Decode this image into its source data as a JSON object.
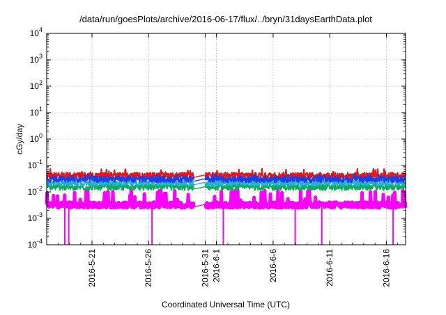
{
  "chart_data": {
    "type": "line",
    "title": "/data/run/goesPlots/archive/2016-06-17/flux/../bryn/31daysEarthData.plot",
    "xlabel": "Coordinated Universal Time (UTC)",
    "ylabel": "cGy/day",
    "yscale": "log",
    "ylim": [
      0.0001,
      10000
    ],
    "xlim": [
      "2016-05-17",
      "2016-06-18"
    ],
    "grid": true,
    "x_ticks": [
      "2016-5-21",
      "2016-5-26",
      "2016-5-31",
      "2016-6-1",
      "2016-6-6",
      "2016-6-11",
      "2016-6-16"
    ],
    "y_ticks": [
      {
        "base": "10",
        "exp": "-4",
        "value": 0.0001
      },
      {
        "base": "10",
        "exp": "-3",
        "value": 0.001
      },
      {
        "base": "10",
        "exp": "-2",
        "value": 0.01
      },
      {
        "base": "10",
        "exp": "-1",
        "value": 0.1
      },
      {
        "base": "10",
        "exp": "0",
        "value": 1
      },
      {
        "base": "10",
        "exp": "1",
        "value": 10
      },
      {
        "base": "10",
        "exp": "2",
        "value": 100
      },
      {
        "base": "10",
        "exp": "3",
        "value": 1000
      },
      {
        "base": "10",
        "exp": "4",
        "value": 10000
      }
    ],
    "data_gap": {
      "start": "2016-05-30",
      "end": "2016-05-31"
    },
    "series": [
      {
        "color": "#e8141a",
        "base": 0.042,
        "spike_max": 0.075
      },
      {
        "color": "#1a40e8",
        "base": 0.03,
        "spike_max": 0.048
      },
      {
        "color": "#20b4d0",
        "base": 0.022,
        "spike_max": 0.032
      },
      {
        "color": "#16a85a",
        "base": 0.015,
        "spike_max": 0.022
      },
      {
        "color": "#ff00ff",
        "base": 0.0032,
        "spike_max": 0.012
      }
    ],
    "magenta_dropouts": [
      "2016-05-19",
      "2016-05-19",
      "2016-05-26",
      "2016-06-02",
      "2016-06-08",
      "2016-06-10",
      "2016-06-17"
    ]
  }
}
